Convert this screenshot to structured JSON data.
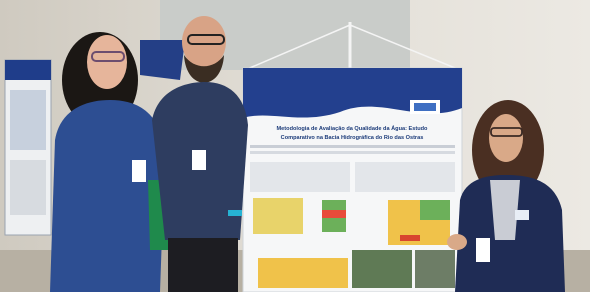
{
  "poster": {
    "title_lines": [
      "Metodologia de Avaliação da Qualidade da Água: Estudo",
      "Comparativo na Bacia Hidrográfica do Rio das Ostras"
    ]
  }
}
